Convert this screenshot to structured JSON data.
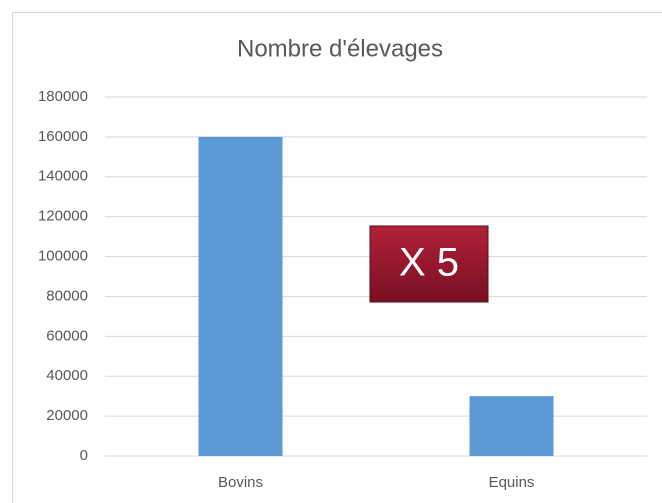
{
  "chart_data": {
    "type": "bar",
    "title": "Nombre d'élevages",
    "categories": [
      "Bovins",
      "Equins"
    ],
    "values": [
      160000,
      30000
    ],
    "color": "#5b9bd5",
    "ylim": [
      0,
      180000
    ],
    "yticks": [
      0,
      20000,
      40000,
      60000,
      80000,
      100000,
      120000,
      140000,
      160000,
      180000
    ],
    "grid": true,
    "annotation": "X 5"
  }
}
